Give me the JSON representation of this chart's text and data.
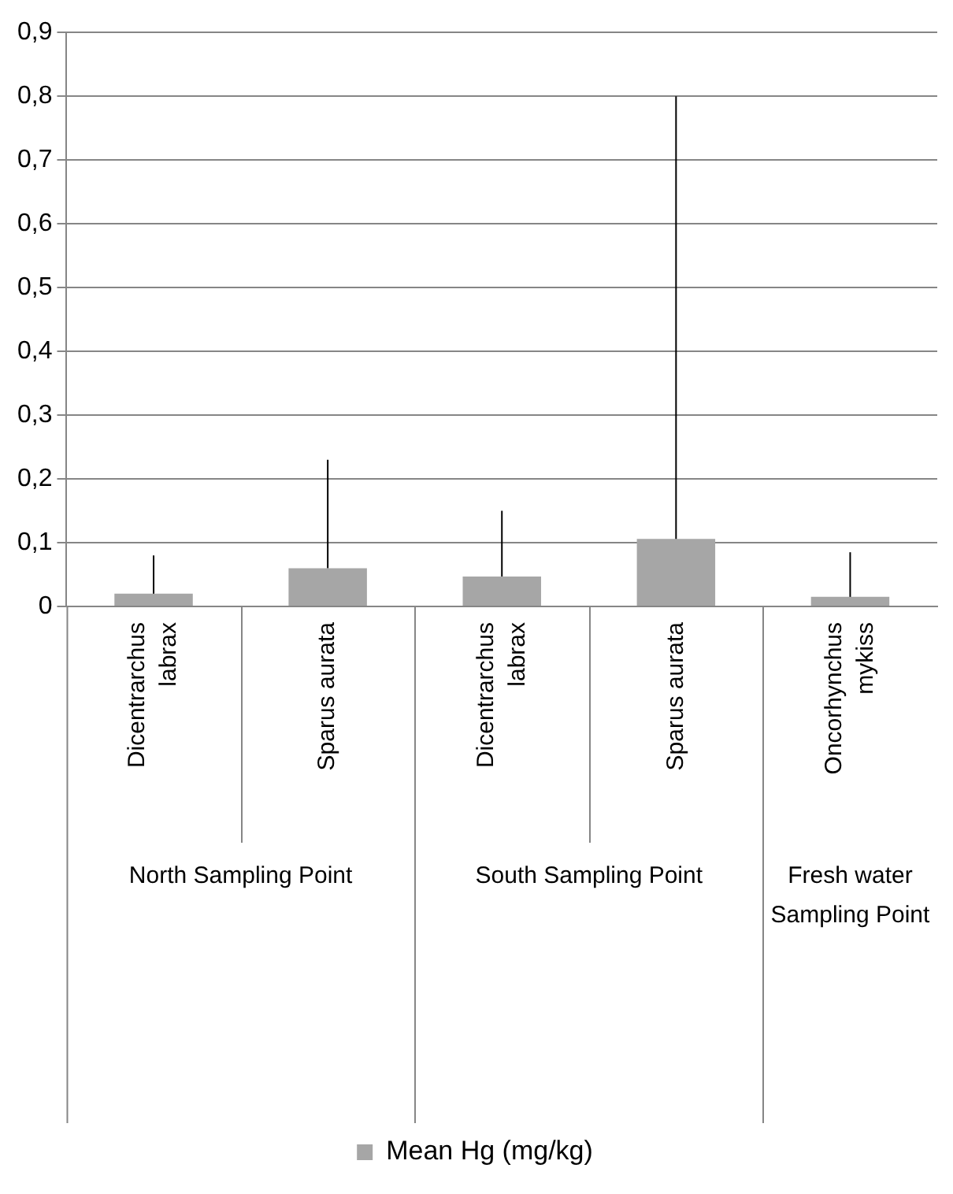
{
  "chart_data": {
    "type": "bar",
    "categories": [
      "Dicentrarchus labrax",
      "Sparus aurata",
      "Dicentrarchus labrax",
      "Sparus aurata",
      "Oncorhynchus mykiss"
    ],
    "series": [
      {
        "name": "Mean Hg (mg/kg)",
        "color": "#a6a6a6",
        "values": [
          0.02,
          0.06,
          0.047,
          0.106,
          0.015
        ],
        "errors": [
          [
            0.02,
            0.08
          ],
          [
            0.06,
            0.23
          ],
          [
            0.047,
            0.15
          ],
          [
            0.106,
            0.8
          ],
          [
            0.015,
            0.085
          ]
        ]
      }
    ],
    "annotations": [
      "North Sampling Point",
      "South Sampling Point",
      "Fresh water Sampling Point"
    ],
    "ylim": [
      0,
      0.9
    ],
    "yticks": [
      {
        "value": 0,
        "label": "0"
      },
      {
        "value": 0.1,
        "label": "0,1"
      },
      {
        "value": 0.2,
        "label": "0,2"
      },
      {
        "value": 0.3,
        "label": "0,3"
      },
      {
        "value": 0.4,
        "label": "0,4"
      },
      {
        "value": 0.5,
        "label": "0,5"
      },
      {
        "value": 0.6,
        "label": "0,6"
      },
      {
        "value": 0.7,
        "label": "0,7"
      },
      {
        "value": 0.8,
        "label": "0,8"
      },
      {
        "value": 0.9,
        "label": "0,9"
      }
    ],
    "grid": "y",
    "legend": "bottom"
  }
}
